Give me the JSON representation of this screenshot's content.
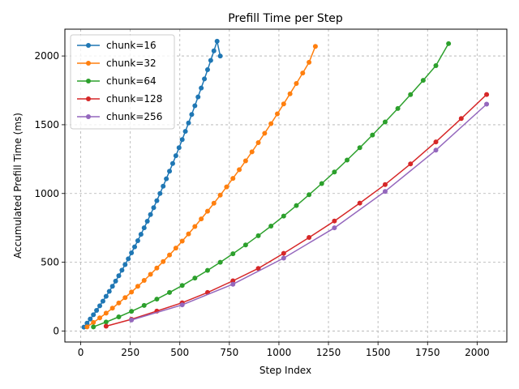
{
  "chart_data": {
    "type": "line",
    "title": "Prefill Time per Step",
    "xlabel": "Step Index",
    "ylabel": "Accumulated Prefill Time (ms)",
    "xlim": [
      -80,
      2150
    ],
    "ylim": [
      -80,
      2195
    ],
    "xticks": [
      0,
      250,
      500,
      750,
      1000,
      1250,
      1500,
      1750,
      2000
    ],
    "yticks": [
      0,
      500,
      1000,
      1500,
      2000
    ],
    "grid": true,
    "legend_position": "top-left",
    "series": [
      {
        "name": "chunk=16",
        "color": "#1f77b4",
        "x": [
          16,
          32,
          48,
          64,
          80,
          96,
          112,
          128,
          144,
          160,
          176,
          192,
          208,
          224,
          240,
          256,
          272,
          288,
          304,
          320,
          336,
          352,
          368,
          384,
          400,
          416,
          432,
          448,
          464,
          480,
          496,
          512,
          528,
          544,
          560,
          576,
          592,
          608,
          624,
          640,
          656,
          672,
          688,
          704
        ],
        "y": [
          28,
          57,
          87,
          118,
          150,
          183,
          217,
          252,
          288,
          325,
          363,
          402,
          442,
          483,
          525,
          568,
          612,
          657,
          703,
          750,
          798,
          847,
          897,
          948,
          1000,
          1053,
          1107,
          1162,
          1218,
          1275,
          1333,
          1392,
          1452,
          1513,
          1575,
          1638,
          1702,
          1767,
          1833,
          1900,
          1968,
          2037,
          2107,
          2000
        ]
      },
      {
        "name": "chunk=32",
        "color": "#ff7f0e",
        "x": [
          32,
          64,
          96,
          128,
          160,
          192,
          224,
          256,
          288,
          320,
          352,
          384,
          416,
          448,
          480,
          512,
          544,
          576,
          608,
          640,
          672,
          704,
          736,
          768,
          800,
          832,
          864,
          896,
          928,
          960,
          992,
          1024,
          1056,
          1088,
          1120,
          1152,
          1184
        ],
        "y": [
          30,
          62,
          95,
          130,
          166,
          204,
          243,
          283,
          325,
          368,
          412,
          458,
          505,
          553,
          603,
          654,
          706,
          760,
          815,
          871,
          929,
          988,
          1048,
          1110,
          1173,
          1237,
          1303,
          1370,
          1438,
          1508,
          1579,
          1651,
          1725,
          1800,
          1876,
          1954,
          2070
        ]
      },
      {
        "name": "chunk=64",
        "color": "#2ca02c",
        "x": [
          64,
          128,
          192,
          256,
          320,
          384,
          448,
          512,
          576,
          640,
          704,
          768,
          832,
          896,
          960,
          1024,
          1088,
          1152,
          1216,
          1280,
          1344,
          1408,
          1472,
          1536,
          1600,
          1664,
          1728,
          1792,
          1856
        ],
        "y": [
          30,
          65,
          103,
          143,
          186,
          232,
          280,
          331,
          385,
          441,
          500,
          562,
          626,
          693,
          763,
          836,
          912,
          991,
          1072,
          1156,
          1243,
          1333,
          1425,
          1520,
          1618,
          1719,
          1823,
          1930,
          2090
        ]
      },
      {
        "name": "chunk=128",
        "color": "#d62728",
        "x": [
          128,
          256,
          384,
          512,
          640,
          768,
          896,
          1024,
          1152,
          1280,
          1408,
          1536,
          1664,
          1792,
          1920,
          2048
        ],
        "y": [
          35,
          85,
          145,
          205,
          280,
          365,
          455,
          565,
          680,
          800,
          930,
          1065,
          1215,
          1375,
          1545,
          1720
        ]
      },
      {
        "name": "chunk=256",
        "color": "#9467bd",
        "x": [
          256,
          512,
          768,
          1024,
          1280,
          1536,
          1792,
          2048
        ],
        "y": [
          80,
          190,
          340,
          530,
          750,
          1015,
          1315,
          1650
        ]
      }
    ]
  }
}
